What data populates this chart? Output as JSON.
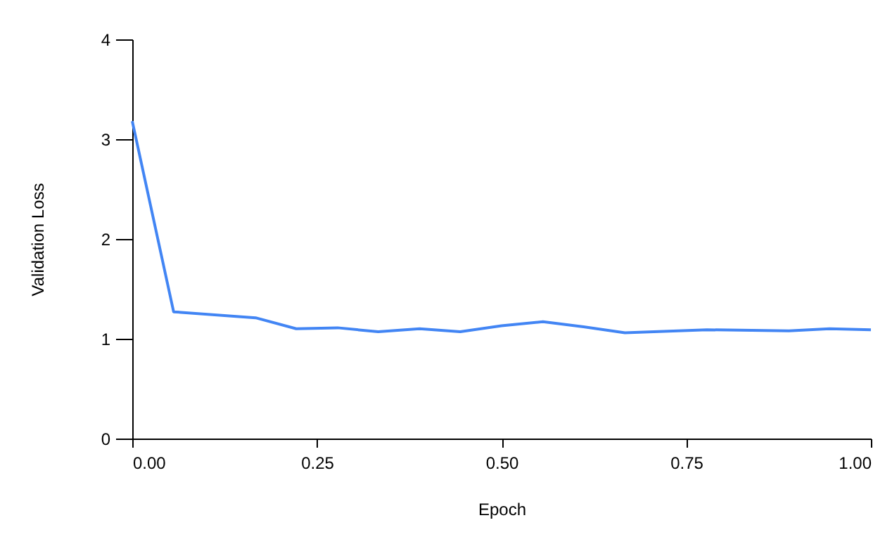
{
  "chart_data": {
    "type": "line",
    "xlabel": "Epoch",
    "ylabel": "Validation Loss",
    "x": [
      0,
      0.056,
      0.167,
      0.222,
      0.278,
      0.333,
      0.389,
      0.444,
      0.5,
      0.556,
      0.611,
      0.667,
      0.778,
      0.889,
      0.944,
      1.0
    ],
    "series": [
      {
        "color": "#4285f4",
        "values": [
          3.18,
          1.27,
          1.21,
          1.1,
          1.11,
          1.07,
          1.1,
          1.07,
          1.13,
          1.17,
          1.12,
          1.06,
          1.09,
          1.08,
          1.1,
          1.09
        ]
      }
    ],
    "xlim": [
      0,
      1
    ],
    "xticks": [
      {
        "value": 0,
        "label": "0.00"
      },
      {
        "value": 0.25,
        "label": "0.25"
      },
      {
        "value": 0.5,
        "label": "0.50"
      },
      {
        "value": 0.75,
        "label": "0.75"
      },
      {
        "value": 1,
        "label": "1.00"
      }
    ],
    "ylim": [
      0,
      4
    ],
    "yticks": [
      0,
      1,
      2,
      3,
      4
    ],
    "grid": false,
    "marker": "none",
    "line_style": "solid"
  }
}
